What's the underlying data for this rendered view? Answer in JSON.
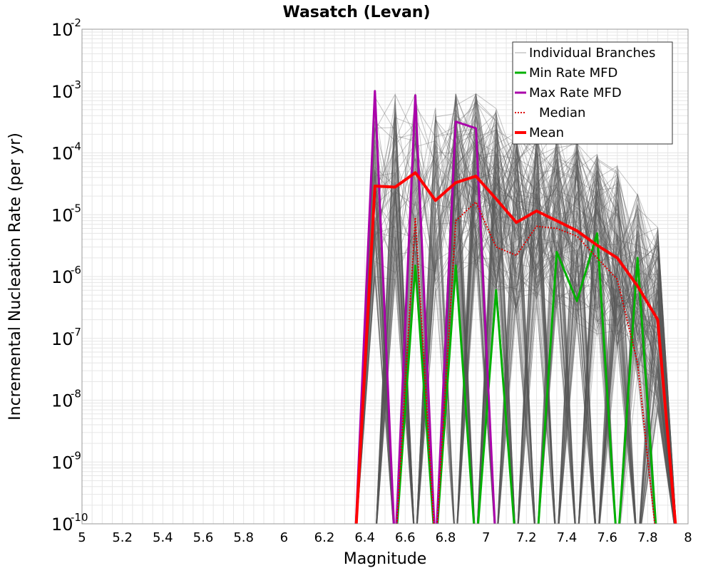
{
  "chart_data": {
    "type": "line",
    "title": "Wasatch (Levan)",
    "xlabel": "Magnitude",
    "ylabel": "Incremental Nucleation Rate (per yr)",
    "xscale": "linear",
    "yscale": "log",
    "xlim": [
      5,
      8
    ],
    "ylim": [
      1e-10,
      0.01
    ],
    "grid": true,
    "legend_position": "top-right",
    "xticks": [
      5,
      5.2,
      5.4,
      5.6,
      5.8,
      6,
      6.2,
      6.4,
      6.6,
      6.8,
      7,
      7.2,
      7.4,
      7.6,
      7.8,
      8
    ],
    "xtick_labels": [
      "5",
      "5.2",
      "5.4",
      "5.6",
      "5.8",
      "6",
      "6.2",
      "6.4",
      "6.6",
      "6.8",
      "7",
      "7.2",
      "7.4",
      "7.6",
      "7.8",
      "8"
    ],
    "yticks": [
      {
        "base": "10",
        "exp": "-10"
      },
      {
        "base": "10",
        "exp": "-9"
      },
      {
        "base": "10",
        "exp": "-8"
      },
      {
        "base": "10",
        "exp": "-7"
      },
      {
        "base": "10",
        "exp": "-6"
      },
      {
        "base": "10",
        "exp": "-5"
      },
      {
        "base": "10",
        "exp": "-4"
      },
      {
        "base": "10",
        "exp": "-3"
      },
      {
        "base": "10",
        "exp": "-2"
      }
    ],
    "colors": {
      "branches": "#555555",
      "min": "#00b000",
      "max": "#aa00aa",
      "median": "#dd0000",
      "mean": "#ff0000",
      "grid": "#e6e6e6",
      "axis": "#999999"
    },
    "x": [
      6.35,
      6.45,
      6.55,
      6.65,
      6.75,
      6.85,
      6.95,
      7.05,
      7.15,
      7.25,
      7.35,
      7.45,
      7.55,
      7.65,
      7.75,
      7.85,
      7.95
    ],
    "series": [
      {
        "name": "Min Rate MFD",
        "style": "solid",
        "values": [
          null,
          null,
          null,
          1.5e-06,
          null,
          1.5e-06,
          null,
          6e-07,
          null,
          null,
          2.5e-06,
          4e-07,
          5e-06,
          null,
          2e-06,
          null,
          null
        ]
      },
      {
        "name": "Max Rate MFD",
        "style": "solid",
        "values": [
          null,
          0.001,
          null,
          0.00085,
          null,
          0.00032,
          0.00025,
          null,
          null,
          null,
          null,
          null,
          null,
          null,
          null,
          null,
          null
        ]
      },
      {
        "name": "Median",
        "style": "dotted",
        "values": [
          null,
          null,
          null,
          9e-06,
          null,
          8e-06,
          1.6e-05,
          3e-06,
          2.2e-06,
          6.5e-06,
          6e-06,
          4.5e-06,
          2e-06,
          9e-07,
          4e-08,
          null,
          null
        ]
      },
      {
        "name": "Mean",
        "style": "solid",
        "values": [
          null,
          2.9e-05,
          2.8e-05,
          4.8e-05,
          1.7e-05,
          3.3e-05,
          4.2e-05,
          1.8e-05,
          7.5e-06,
          1.15e-05,
          8e-06,
          5.5e-06,
          3.2e-06,
          2e-06,
          7e-07,
          2e-07,
          null
        ]
      }
    ],
    "legend": [
      {
        "label": "Individual Branches",
        "key": "branches"
      },
      {
        "label": "Min Rate MFD",
        "key": "min"
      },
      {
        "label": "Max Rate MFD",
        "key": "max"
      },
      {
        "label": "Median",
        "key": "median"
      },
      {
        "label": "Mean",
        "key": "mean"
      }
    ]
  }
}
